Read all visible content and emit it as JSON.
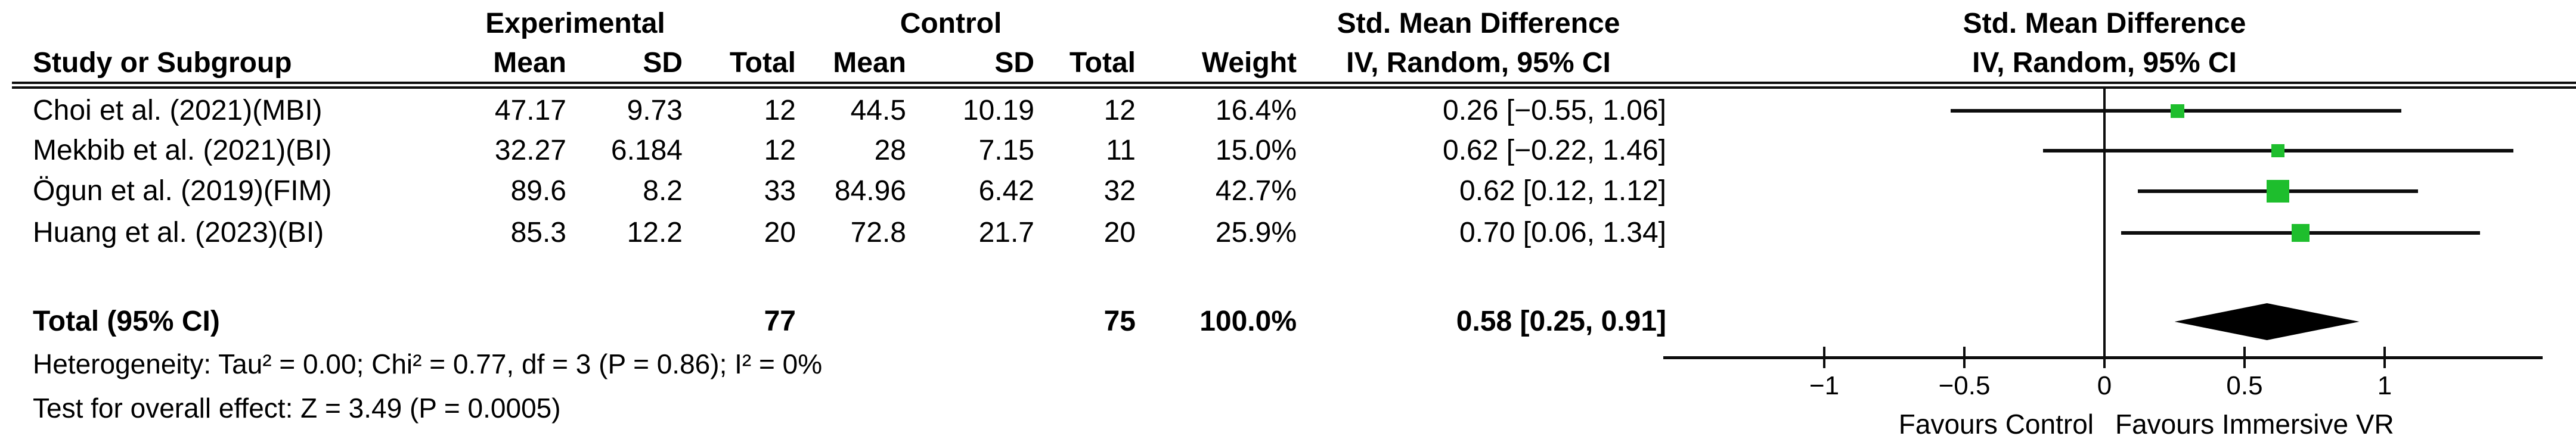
{
  "figure": {
    "group_headers": {
      "experimental": "Experimental",
      "control": "Control",
      "smd_table": "Std. Mean Difference",
      "smd_plot": "Std. Mean Difference"
    },
    "col_headers": {
      "study": "Study or Subgroup",
      "mean": "Mean",
      "sd": "SD",
      "total": "Total",
      "mean2": "Mean",
      "sd2": "SD",
      "total2": "Total",
      "weight": "Weight",
      "method_table": "IV, Random, 95% CI",
      "method_plot": "IV, Random, 95% CI"
    }
  },
  "chart_data": {
    "type": "forest",
    "effect_measure": "Std. Mean Difference",
    "model": "IV, Random, 95% CI",
    "studies": [
      {
        "label": "Choi et al. (2021)(MBI)",
        "exp_mean": "47.17",
        "exp_sd": "9.73",
        "exp_total": "12",
        "ctrl_mean": "44.5",
        "ctrl_sd": "10.19",
        "ctrl_total": "12",
        "weight": "16.4%",
        "weight_pct": 16.4,
        "smd": 0.26,
        "ci_low": -0.55,
        "ci_high": 1.06,
        "ci_text": "0.26 [−0.55, 1.06]"
      },
      {
        "label": "Mekbib et al. (2021)(BI)",
        "exp_mean": "32.27",
        "exp_sd": "6.184",
        "exp_total": "12",
        "ctrl_mean": "28",
        "ctrl_sd": "7.15",
        "ctrl_total": "11",
        "weight": "15.0%",
        "weight_pct": 15.0,
        "smd": 0.62,
        "ci_low": -0.22,
        "ci_high": 1.46,
        "ci_text": "0.62 [−0.22, 1.46]"
      },
      {
        "label": "Ögun et al. (2019)(FIM)",
        "exp_mean": "89.6",
        "exp_sd": "8.2",
        "exp_total": "33",
        "ctrl_mean": "84.96",
        "ctrl_sd": "6.42",
        "ctrl_total": "32",
        "weight": "42.7%",
        "weight_pct": 42.7,
        "smd": 0.62,
        "ci_low": 0.12,
        "ci_high": 1.12,
        "ci_text": "0.62 [0.12, 1.12]"
      },
      {
        "label": "Huang et al. (2023)(BI)",
        "exp_mean": "85.3",
        "exp_sd": "12.2",
        "exp_total": "20",
        "ctrl_mean": "72.8",
        "ctrl_sd": "21.7",
        "ctrl_total": "20",
        "weight": "25.9%",
        "weight_pct": 25.9,
        "smd": 0.7,
        "ci_low": 0.06,
        "ci_high": 1.34,
        "ci_text": "0.70 [0.06, 1.34]"
      }
    ],
    "total": {
      "label": "Total (95% CI)",
      "exp_total": "77",
      "ctrl_total": "75",
      "weight": "100.0%",
      "smd": 0.58,
      "ci_low": 0.25,
      "ci_high": 0.91,
      "ci_text": "0.58 [0.25, 0.91]"
    },
    "heterogeneity": "Heterogeneity: Tau² = 0.00; Chi² = 0.77, df = 3 (P = 0.86); I² = 0%",
    "overall_effect": "Test for overall effect: Z = 3.49 (P = 0.0005)",
    "axis": {
      "ticks": [
        -1,
        -0.5,
        0,
        0.5,
        1
      ],
      "tick_labels": [
        "−1",
        "−0.5",
        "0",
        "0.5",
        "1"
      ],
      "xmin": -1.57,
      "xmax": 1.56,
      "zero_reference": 0
    },
    "favours_left": "Favours Control",
    "favours_right": "Favours Immersive VR",
    "marker_color": "#1ebe2d",
    "diamond_color": "#000000",
    "line_color": "#0d0d0d"
  }
}
